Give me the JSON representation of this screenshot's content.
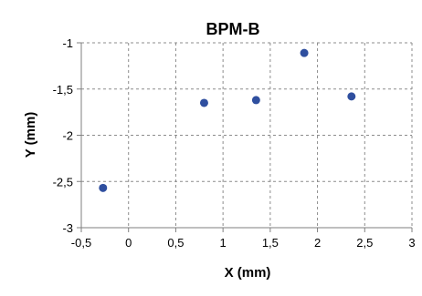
{
  "chart_data": {
    "type": "scatter",
    "title": "BPM-B",
    "xlabel": "X (mm)",
    "ylabel": "Y (mm)",
    "xlim": [
      -0.5,
      3
    ],
    "ylim": [
      -3,
      -1
    ],
    "x_ticks": [
      -0.5,
      0,
      0.5,
      1,
      1.5,
      2,
      2.5,
      3
    ],
    "y_ticks": [
      -3,
      -2.5,
      -2,
      -1.5,
      -1
    ],
    "x_tick_labels": [
      "-0,5",
      "0",
      "0,5",
      "1",
      "1,5",
      "2",
      "2,5",
      "3"
    ],
    "y_tick_labels": [
      "-3",
      "-2,5",
      "-2",
      "-1,5",
      "-1"
    ],
    "grid": true,
    "marker_color": "#2f4f9f",
    "series": [
      {
        "points": [
          {
            "x": -0.27,
            "y": -2.57
          },
          {
            "x": 0.8,
            "y": -1.65
          },
          {
            "x": 1.35,
            "y": -1.62
          },
          {
            "x": 1.86,
            "y": -1.11
          },
          {
            "x": 2.36,
            "y": -1.58
          }
        ]
      }
    ]
  }
}
